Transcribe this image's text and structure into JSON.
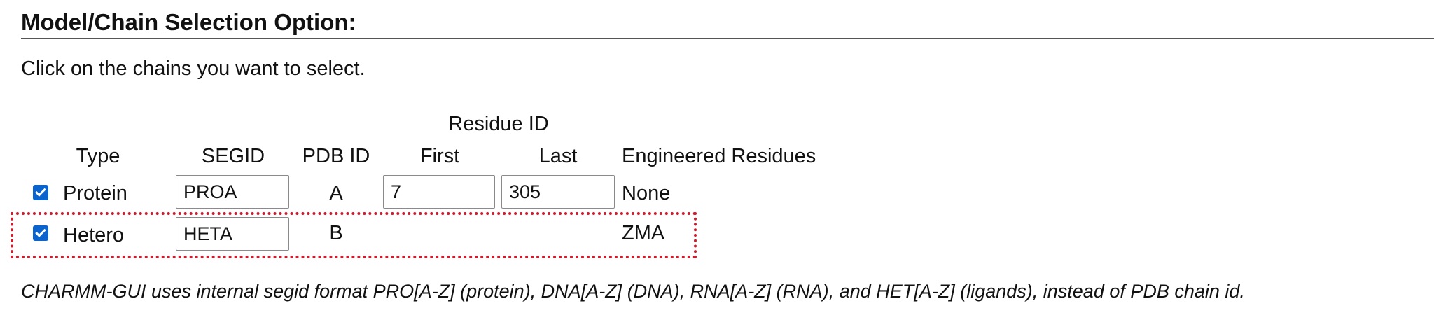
{
  "section": {
    "title": "Model/Chain Selection Option:",
    "instructions": "Click on the chains you want to select."
  },
  "table": {
    "group_header": "Residue ID",
    "headers": {
      "type": "Type",
      "segid": "SEGID",
      "pdb_id": "PDB ID",
      "first": "First",
      "last": "Last",
      "engineered": "Engineered Residues"
    },
    "rows": [
      {
        "checked": true,
        "type": "Protein",
        "segid": "PROA",
        "pdb_id": "A",
        "first": "7",
        "last": "305",
        "engineered": "None"
      },
      {
        "checked": true,
        "type": "Hetero",
        "segid": "HETA",
        "pdb_id": "B",
        "engineered": "ZMA"
      }
    ]
  },
  "highlight": {
    "color": "#d11a2a",
    "target_row": "Hetero"
  },
  "note": "CHARMM-GUI uses internal segid format PRO[A-Z] (protein), DNA[A-Z] (DNA), RNA[A-Z] (RNA), and HET[A-Z] (ligands), instead of PDB chain id.",
  "colors": {
    "checkbox": "#0b63ce",
    "text": "#111111"
  },
  "icons": {
    "checkbox": "checkmark-icon"
  }
}
